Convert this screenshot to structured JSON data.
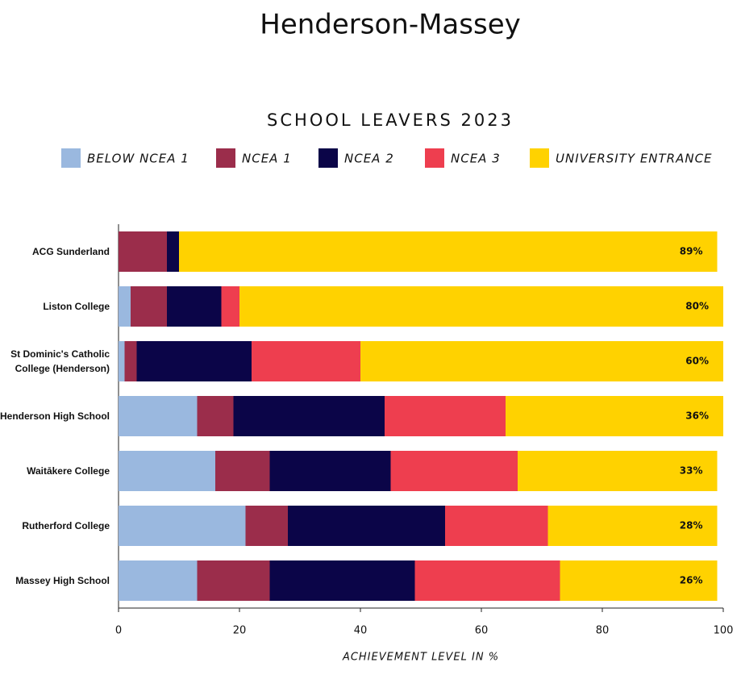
{
  "chart_data": {
    "type": "stacked-bar-horizontal",
    "title": "Henderson-Massey",
    "subtitle": "SCHOOL LEAVERS 2023",
    "x_label": "ACHIEVEMENT LEVEL IN %",
    "categories": [
      "ACG Sunderland",
      "Liston College",
      "St Dominic's Catholic College (Henderson)",
      "Henderson High School",
      "Waitākere College",
      "Rutherford College",
      "Massey High School"
    ],
    "series": [
      {
        "name": "BELOW NCEA 1",
        "color": "#9ab8df",
        "values": [
          0,
          2,
          1,
          13,
          16,
          21,
          13
        ]
      },
      {
        "name": "NCEA 1",
        "color": "#9b2d4b",
        "values": [
          8,
          6,
          2,
          6,
          9,
          7,
          12
        ]
      },
      {
        "name": "NCEA 2",
        "color": "#0b0548",
        "values": [
          2,
          9,
          19,
          25,
          20,
          26,
          24
        ]
      },
      {
        "name": "NCEA 3",
        "color": "#ee3e4f",
        "values": [
          0,
          3,
          18,
          20,
          21,
          17,
          24
        ]
      },
      {
        "name": "UNIVERSITY ENTRANCE",
        "color": "#ffd200",
        "values": [
          89,
          80,
          60,
          36,
          33,
          28,
          26
        ],
        "value_labels": [
          "89%",
          "80%",
          "60%",
          "36%",
          "33%",
          "28%",
          "26%"
        ]
      }
    ],
    "xlim": [
      0,
      100
    ],
    "xticks": [
      0,
      20,
      40,
      60,
      80,
      100
    ]
  }
}
